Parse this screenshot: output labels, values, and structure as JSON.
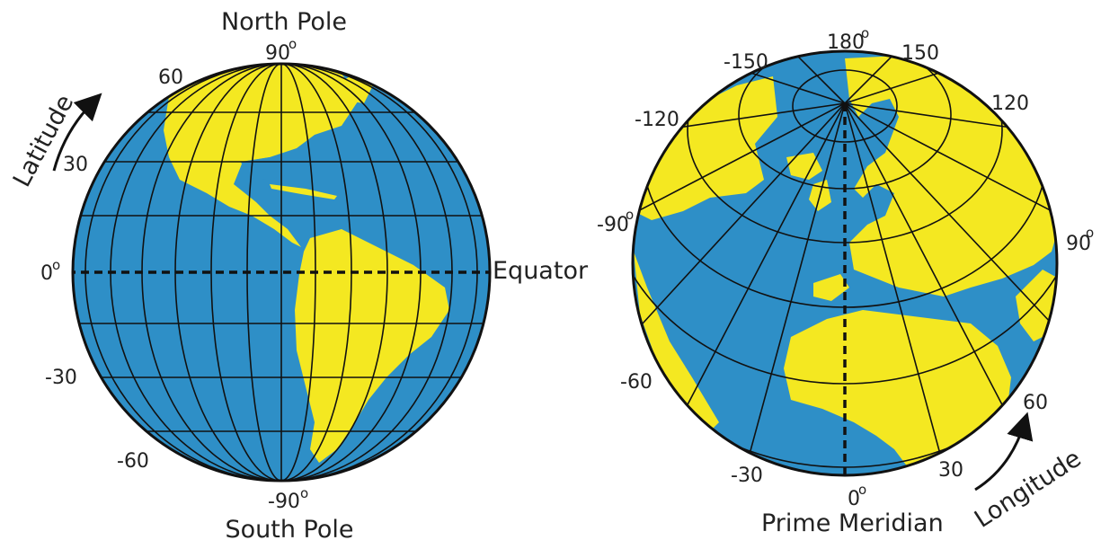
{
  "colors": {
    "ocean": "#2e8fc7",
    "land": "#f4e821",
    "grid": "#111111",
    "text": "#222222"
  },
  "left_globe": {
    "title": "North Pole",
    "bottom_title": "South Pole",
    "equator_label": "Equator",
    "arrow_label": "Latitude",
    "top_value": "90",
    "bottom_value": "-90",
    "zero_value": "0",
    "degree_mark": "o",
    "lat_labels": [
      "60",
      "30",
      "-30",
      "-60"
    ]
  },
  "right_globe": {
    "bottom_title": "Prime Meridian",
    "arrow_label": "Longitude",
    "top_value": "180",
    "bottom_value": "0",
    "west_value": "-90",
    "east_value": "90",
    "degree_mark": "o",
    "lon_labels": [
      "-150",
      "150",
      "-120",
      "120",
      "-60",
      "60",
      "-30",
      "30"
    ]
  }
}
